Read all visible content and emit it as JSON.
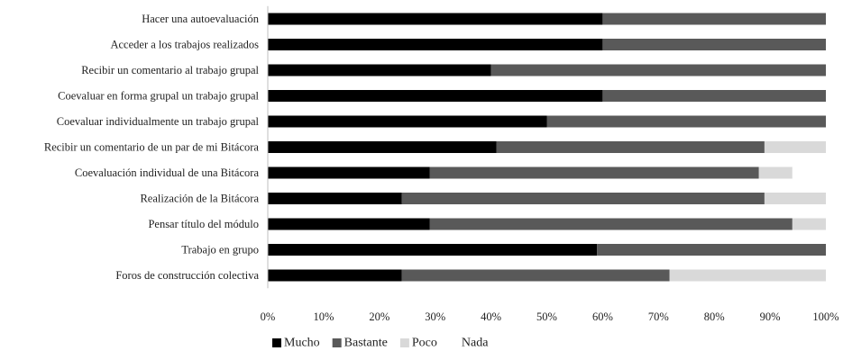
{
  "chart_data": {
    "type": "bar",
    "orientation": "horizontal",
    "stacked": true,
    "percent": true,
    "categories": [
      "Hacer una autoevaluación",
      "Acceder a los trabajos realizados ",
      "Recibir un comentario al trabajo grupal",
      "Coevaluar en forma grupal un trabajo grupal",
      "Coevaluar individualmente un trabajo grupal",
      "Recibir un comentario de un par de mi Bitácora",
      "Coevaluación individual de una Bitácora",
      "Realización de la Bitácora",
      "Pensar título del módulo",
      "Trabajo en grupo",
      "Foros de construcción colectiva"
    ],
    "series": [
      {
        "name": "Mucho",
        "color": "#000000",
        "values": [
          60,
          60,
          40,
          60,
          50,
          41,
          29,
          24,
          29,
          59,
          24
        ]
      },
      {
        "name": "Bastante",
        "color": "#595959",
        "values": [
          40,
          40,
          60,
          40,
          50,
          48,
          59,
          65,
          65,
          41,
          48
        ]
      },
      {
        "name": "Poco",
        "color": "#d9d9d9",
        "values": [
          0,
          0,
          0,
          0,
          0,
          11,
          6,
          11,
          6,
          0,
          28
        ]
      },
      {
        "name": "Nada",
        "color": "#ffffff",
        "values": [
          0,
          0,
          0,
          0,
          0,
          0,
          6,
          0,
          0,
          0,
          0
        ]
      }
    ],
    "xlim": [
      0,
      100
    ],
    "xticks": [
      0,
      10,
      20,
      30,
      40,
      50,
      60,
      70,
      80,
      90,
      100
    ],
    "tick_suffix": "%",
    "grid": false,
    "legend_position": "bottom",
    "title": "",
    "xlabel": "",
    "ylabel": ""
  }
}
